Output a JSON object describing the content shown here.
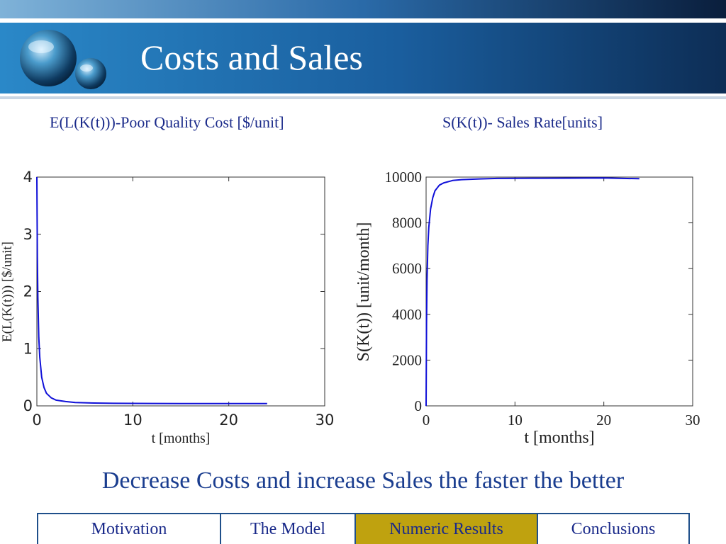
{
  "slide": {
    "title": "Costs and  Sales",
    "tagline": "Decrease Costs and increase Sales the faster the better"
  },
  "colors": {
    "header_blue": "#1b6fb0",
    "accent_gold": "#bfa20f",
    "text_blue": "#1a2a8a",
    "series_blue": "#1010d8"
  },
  "nav": {
    "tabs": [
      {
        "label": "Motivation",
        "active": false
      },
      {
        "label": "The Model",
        "active": false
      },
      {
        "label": "Numeric Results",
        "active": true
      },
      {
        "label": "Conclusions",
        "active": false
      }
    ]
  },
  "chart_data": [
    {
      "type": "line",
      "title": "E(L(K(t)))-Poor Quality Cost [$/unit]",
      "xlabel": "t [months]",
      "ylabel": "E(L(K(t)))  [$/unit]",
      "xlim": [
        0,
        30
      ],
      "ylim": [
        0,
        4
      ],
      "xticks": [
        "0",
        "10",
        "20",
        "30"
      ],
      "yticks": [
        "0",
        "1",
        "2",
        "3",
        "4"
      ],
      "grid": false,
      "series": [
        {
          "x": [
            0,
            0.05,
            0.1,
            0.2,
            0.3,
            0.5,
            0.75,
            1,
            1.5,
            2,
            3,
            4,
            6,
            8,
            12,
            16,
            20,
            24
          ],
          "y": [
            4,
            2.6,
            1.9,
            1.2,
            0.85,
            0.5,
            0.32,
            0.22,
            0.14,
            0.1,
            0.075,
            0.06,
            0.05,
            0.045,
            0.042,
            0.04,
            0.04,
            0.04
          ]
        }
      ]
    },
    {
      "type": "line",
      "title": "S(K(t))- Sales  Rate[units]",
      "xlabel": "t  [months]",
      "ylabel": "S(K(t))  [unit/month]",
      "xlim": [
        0,
        30
      ],
      "ylim": [
        0,
        10000
      ],
      "xticks": [
        "0",
        "10",
        "20",
        "30"
      ],
      "yticks": [
        "0",
        "2000",
        "4000",
        "6000",
        "8000",
        "10000"
      ],
      "grid": false,
      "series": [
        {
          "x": [
            0,
            0.05,
            0.1,
            0.2,
            0.3,
            0.5,
            0.75,
            1,
            1.5,
            2,
            3,
            4,
            6,
            8,
            12,
            16,
            20,
            24
          ],
          "y": [
            0,
            3600,
            5500,
            7000,
            7800,
            8600,
            9100,
            9400,
            9650,
            9750,
            9850,
            9890,
            9920,
            9940,
            9950,
            9955,
            9960,
            9930
          ]
        }
      ]
    }
  ]
}
